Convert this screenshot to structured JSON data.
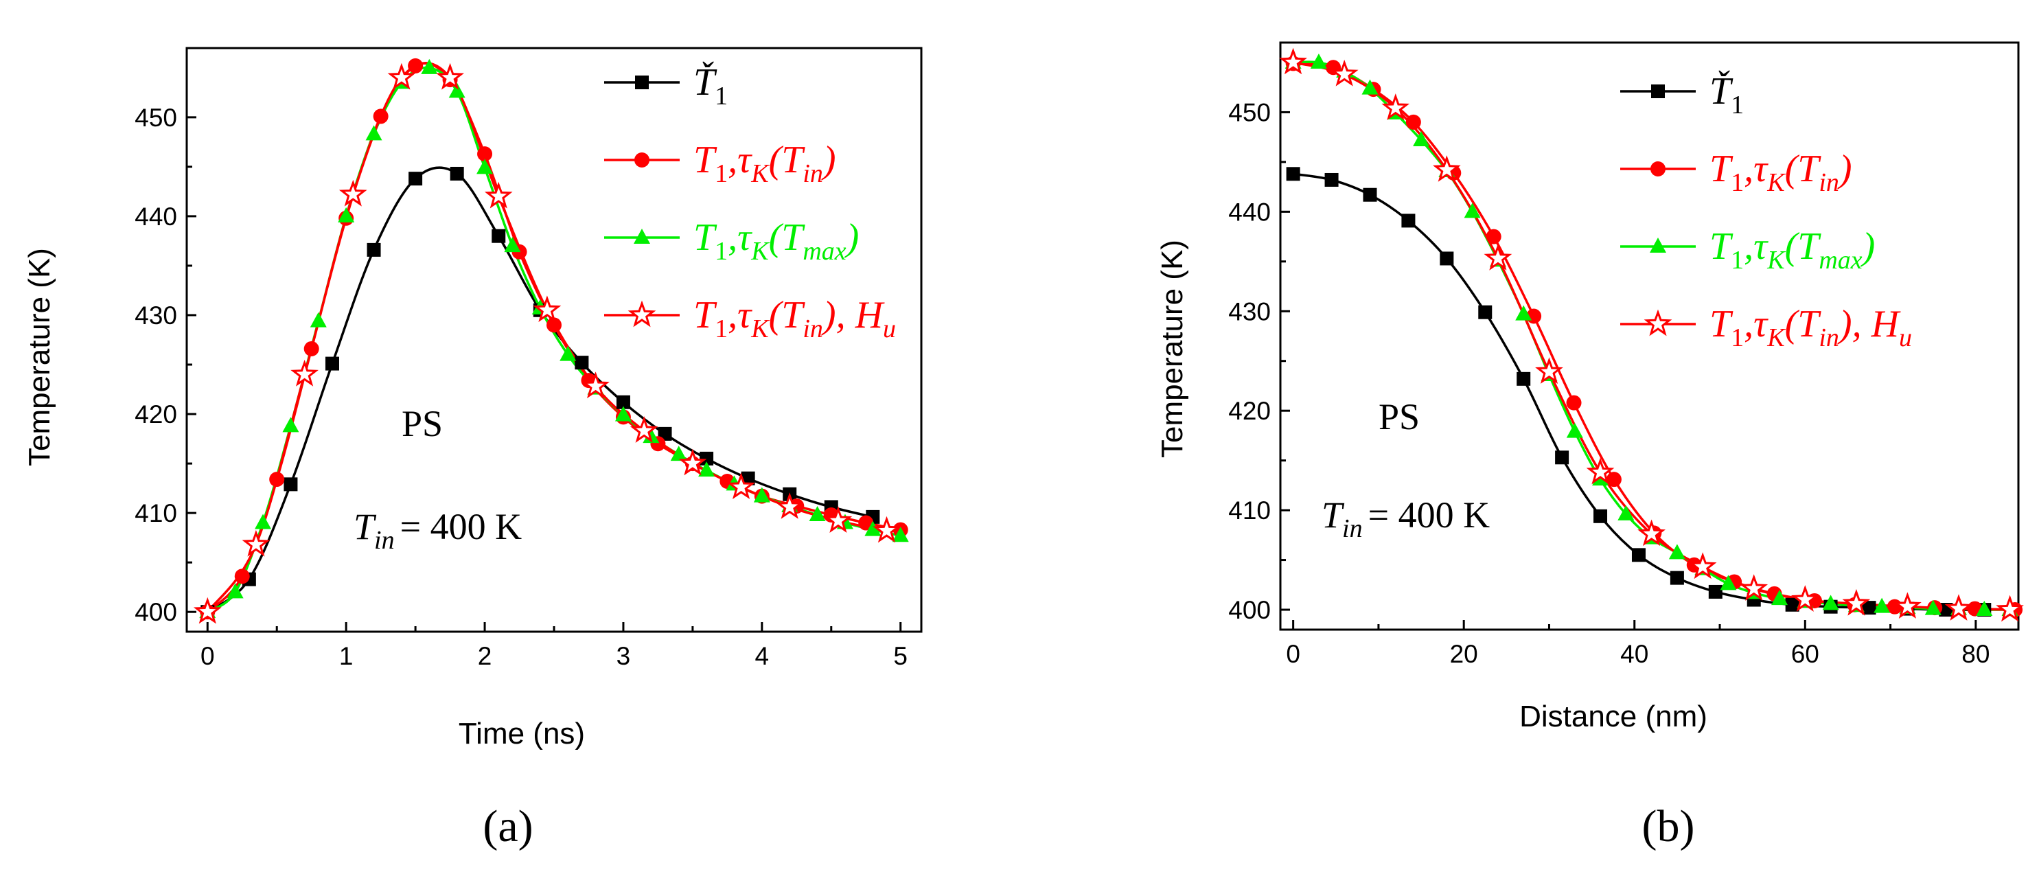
{
  "chart_data": [
    {
      "type": "line",
      "panel_label": "(a)",
      "xlabel": "Time (ns)",
      "ylabel": "Temperature (K)",
      "xlim": [
        -0.15,
        5.15
      ],
      "ylim": [
        398,
        457
      ],
      "xticks": [
        "0",
        "1",
        "2",
        "3",
        "4",
        "5"
      ],
      "yticks": [
        "400",
        "410",
        "420",
        "430",
        "440",
        "450"
      ],
      "annotation_material": "PS",
      "annotation_condition": "= 400 K",
      "series": [
        {
          "name": "T1 (check)",
          "color": "#000000",
          "marker": "square",
          "x": [
            0,
            0.3,
            0.6,
            0.9,
            1.2,
            1.5,
            1.8,
            2.1,
            2.4,
            2.7,
            3.0,
            3.3,
            3.6,
            3.9,
            4.2,
            4.5,
            4.8
          ],
          "y": [
            400,
            403.3,
            412.9,
            425.1,
            436.6,
            443.8,
            444.3,
            438.0,
            430.5,
            425.2,
            421.2,
            418.0,
            415.5,
            413.5,
            411.9,
            410.6,
            409.6
          ]
        },
        {
          "name": "T1, tauK(Tin)",
          "color": "#ff0000",
          "marker": "circle",
          "x": [
            0,
            0.25,
            0.5,
            0.75,
            1.0,
            1.25,
            1.5,
            1.75,
            2.0,
            2.25,
            2.5,
            2.75,
            3.0,
            3.25,
            3.5,
            3.75,
            4.0,
            4.25,
            4.5,
            4.75,
            5.0
          ],
          "y": [
            400,
            403.6,
            413.4,
            426.6,
            439.8,
            450.1,
            455.2,
            453.8,
            446.3,
            436.4,
            429.0,
            423.4,
            419.7,
            417.0,
            415.0,
            413.2,
            411.7,
            410.7,
            409.8,
            409.0,
            408.3
          ]
        },
        {
          "name": "T1, tauK(Tmax)",
          "color": "#00ee00",
          "marker": "triangle",
          "x": [
            0,
            0.2,
            0.4,
            0.6,
            0.8,
            1.0,
            1.2,
            1.4,
            1.6,
            1.8,
            2.0,
            2.2,
            2.4,
            2.6,
            2.8,
            3.0,
            3.2,
            3.4,
            3.6,
            3.8,
            4.0,
            4.2,
            4.4,
            4.6,
            4.8,
            5.0
          ],
          "y": [
            400,
            402.0,
            409.0,
            418.8,
            429.4,
            440.0,
            448.3,
            453.5,
            455.0,
            452.6,
            444.9,
            437.0,
            430.7,
            426.0,
            422.6,
            419.9,
            417.7,
            415.9,
            414.3,
            412.9,
            411.7,
            410.7,
            409.8,
            409.0,
            408.3,
            407.7
          ]
        },
        {
          "name": "T1, tauK(Tin), Hu",
          "color": "#ff0000",
          "marker": "star",
          "x": [
            0,
            0.35,
            0.7,
            1.05,
            1.4,
            1.75,
            2.1,
            2.45,
            2.8,
            3.15,
            3.5,
            3.85,
            4.2,
            4.55,
            4.9
          ],
          "y": [
            400,
            406.8,
            424.0,
            442.2,
            454.0,
            454.0,
            442.0,
            430.5,
            422.8,
            418.3,
            415.0,
            412.6,
            410.6,
            409.2,
            408.2
          ]
        }
      ]
    },
    {
      "type": "line",
      "panel_label": "(b)",
      "xlabel": "Distance (nm)",
      "ylabel": "Temperature (K)",
      "xlim": [
        -1.5,
        85
      ],
      "ylim": [
        398,
        457
      ],
      "xticks": [
        "0",
        "20",
        "40",
        "60",
        "80"
      ],
      "yticks": [
        "400",
        "410",
        "420",
        "430",
        "440",
        "450"
      ],
      "annotation_material": "PS",
      "annotation_condition": "= 400 K",
      "series": [
        {
          "name": "T1 (check)",
          "color": "#000000",
          "marker": "square",
          "x": [
            0,
            4.5,
            9,
            13.5,
            18,
            22.5,
            27,
            31.5,
            36,
            40.5,
            45,
            49.5,
            54,
            58.5,
            63,
            67.5,
            72,
            76.5,
            81
          ],
          "y": [
            443.8,
            443.2,
            441.7,
            439.1,
            435.3,
            429.9,
            423.2,
            415.3,
            409.4,
            405.5,
            403.2,
            401.8,
            401.0,
            400.5,
            400.3,
            400.2,
            400.1,
            400.0,
            400.0
          ]
        },
        {
          "name": "T1, tauK(Tin)",
          "color": "#ff0000",
          "marker": "circle",
          "x": [
            0,
            4.7,
            9.4,
            14.1,
            18.8,
            23.5,
            28.2,
            32.9,
            37.6,
            42.3,
            47.0,
            51.7,
            56.4,
            61.1,
            65.8,
            70.5,
            75.2,
            79.9,
            84.6
          ],
          "y": [
            454.9,
            454.5,
            452.3,
            449.0,
            443.9,
            437.5,
            429.5,
            420.8,
            413.1,
            407.7,
            404.5,
            402.8,
            401.6,
            400.9,
            400.5,
            400.3,
            400.2,
            400.1,
            400.0
          ]
        },
        {
          "name": "T1, tauK(Tmax)",
          "color": "#00ee00",
          "marker": "triangle",
          "x": [
            0,
            3,
            6,
            9,
            12,
            15,
            18,
            21,
            24,
            27,
            30,
            33,
            36,
            39,
            42,
            45,
            48,
            51,
            54,
            57,
            60,
            63,
            66,
            69,
            72,
            75,
            78,
            81,
            84
          ],
          "y": [
            455.0,
            455.0,
            454.1,
            452.4,
            449.9,
            447.2,
            444.1,
            440.0,
            435.1,
            429.7,
            423.6,
            417.9,
            413.1,
            409.6,
            407.2,
            405.7,
            404.1,
            402.6,
            401.7,
            401.1,
            400.8,
            400.6,
            400.4,
            400.3,
            400.2,
            400.1,
            400.1,
            400.0,
            400.0
          ]
        },
        {
          "name": "T1, tauK(Tin), Hu",
          "color": "#ff0000",
          "marker": "star",
          "x": [
            0,
            6,
            12,
            18,
            24,
            30,
            36,
            42,
            48,
            54,
            60,
            66,
            72,
            78,
            84
          ],
          "y": [
            455.0,
            453.8,
            450.4,
            444.2,
            435.3,
            423.9,
            413.8,
            407.6,
            404.3,
            402.1,
            401.0,
            400.6,
            400.3,
            400.1,
            400.0
          ]
        }
      ]
    }
  ],
  "legend": [
    {
      "base": "Ť",
      "sub": "1",
      "rest": [],
      "color": "#000000"
    },
    {
      "base": "T",
      "sub": "1",
      "rest": [
        [
          "",
          ",τ"
        ],
        [
          "sub",
          "K"
        ],
        [
          "",
          "(T"
        ],
        [
          "sub",
          "in"
        ],
        [
          "",
          ")"
        ]
      ],
      "color": "#ff0000"
    },
    {
      "base": "T",
      "sub": "1",
      "rest": [
        [
          "",
          ",τ"
        ],
        [
          "sub",
          "K"
        ],
        [
          "",
          "(T"
        ],
        [
          "sub",
          "max"
        ],
        [
          "",
          ")"
        ]
      ],
      "color": "#00ee00"
    },
    {
      "base": "T",
      "sub": "1",
      "rest": [
        [
          "",
          ",τ"
        ],
        [
          "sub",
          "K"
        ],
        [
          "",
          "(T"
        ],
        [
          "sub",
          "in"
        ],
        [
          "",
          "), H"
        ],
        [
          "sub",
          "u"
        ]
      ],
      "color": "#ff0000"
    }
  ],
  "tin_symbol": {
    "base": "T",
    "sub": "in"
  }
}
